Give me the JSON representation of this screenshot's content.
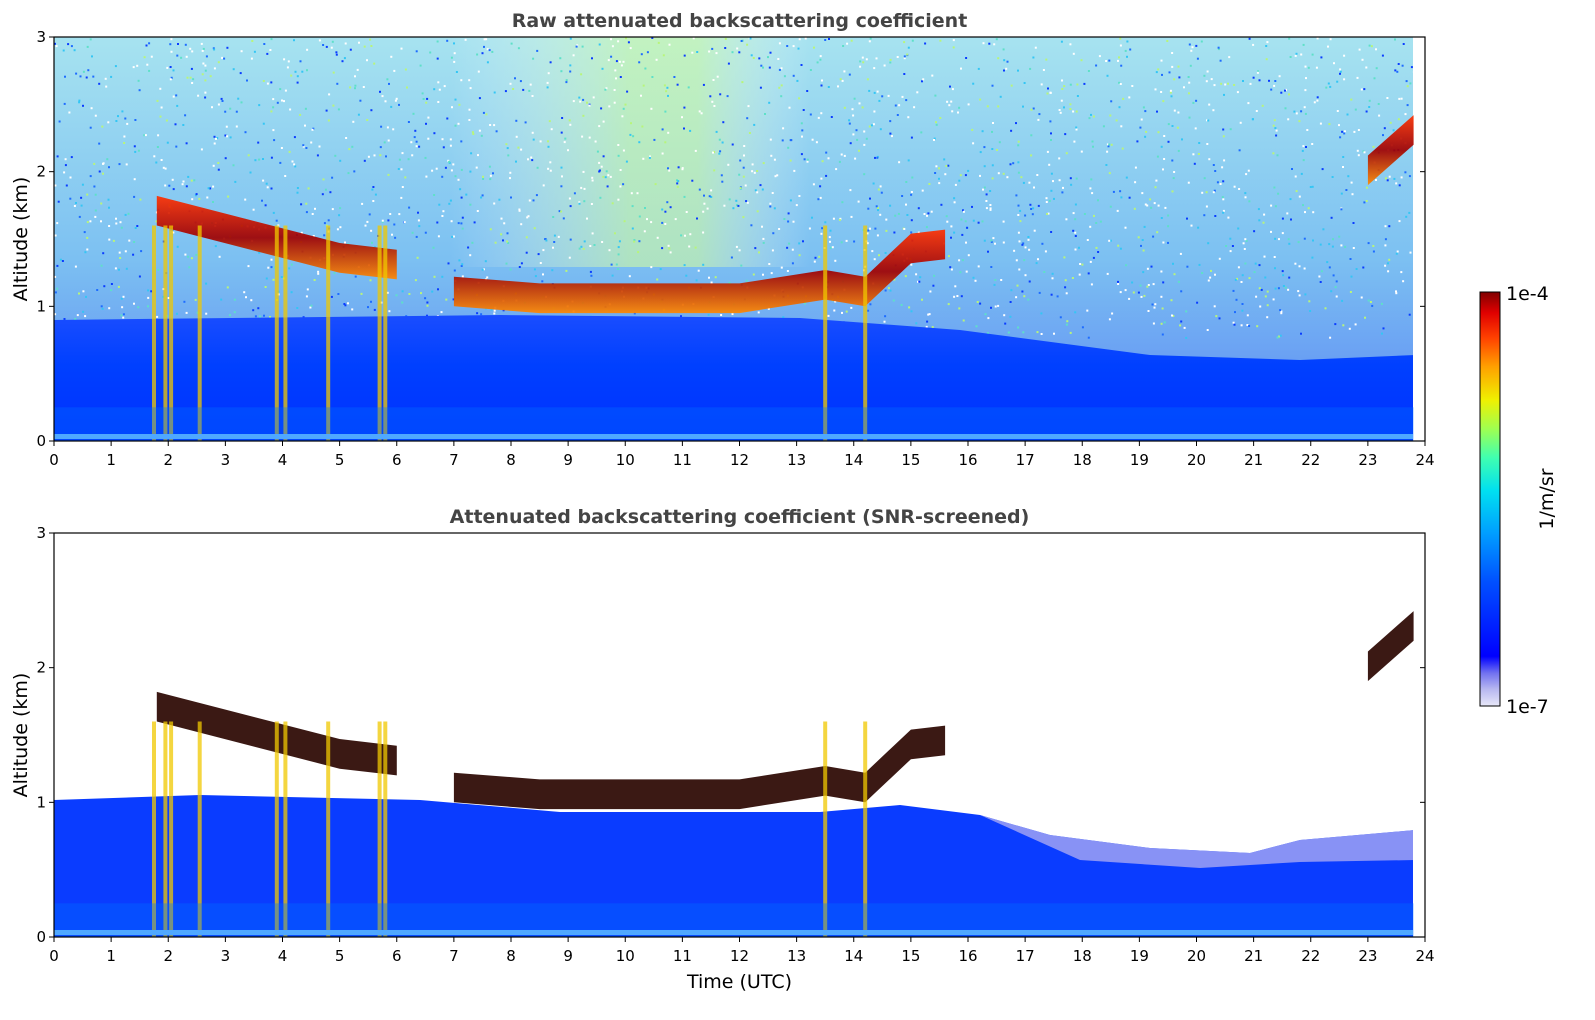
{
  "chart_data": [
    {
      "type": "heatmap",
      "title": "Raw attenuated backscattering coefficient",
      "xlabel": "",
      "ylabel": "Altitude (km)",
      "xlim": [
        0,
        24
      ],
      "ylim": [
        0,
        3
      ],
      "xticks": [
        "0",
        "1",
        "2",
        "3",
        "4",
        "5",
        "6",
        "7",
        "8",
        "9",
        "10",
        "11",
        "12",
        "13",
        "14",
        "15",
        "16",
        "17",
        "18",
        "19",
        "20",
        "21",
        "22",
        "23",
        "24"
      ],
      "yticks": [
        "0",
        "1",
        "2",
        "3"
      ],
      "colorscale": "jet",
      "color_range": [
        "1e-7",
        "1e-4"
      ],
      "features": {
        "cloud_layer_km": [
          {
            "t": 1.8,
            "alt": 1.7
          },
          {
            "t": 5.0,
            "alt": 1.35
          },
          {
            "t": 6.0,
            "alt": 1.3
          },
          {
            "t": 7.0,
            "alt": 1.1
          },
          {
            "t": 8.5,
            "alt": 1.05
          },
          {
            "t": 10.0,
            "alt": 1.05
          },
          {
            "t": 12.0,
            "alt": 1.05
          },
          {
            "t": 13.5,
            "alt": 1.15
          },
          {
            "t": 14.2,
            "alt": 1.1
          },
          {
            "t": 15.0,
            "alt": 1.42
          },
          {
            "t": 15.6,
            "alt": 1.45
          },
          {
            "t": 23.0,
            "alt": 2.0
          },
          {
            "t": 23.8,
            "alt": 2.3
          }
        ],
        "boundary_layer_top_km": [
          {
            "t": 0,
            "alt": 0.9
          },
          {
            "t": 8,
            "alt": 0.95
          },
          {
            "t": 14,
            "alt": 0.95
          },
          {
            "t": 17,
            "alt": 0.7
          },
          {
            "t": 21,
            "alt": 0.55
          },
          {
            "t": 23.8,
            "alt": 0.6
          }
        ]
      }
    },
    {
      "type": "heatmap",
      "title": "Attenuated backscattering coefficient (SNR-screened)",
      "xlabel": "Time (UTC)",
      "ylabel": "Altitude (km)",
      "xlim": [
        0,
        24
      ],
      "ylim": [
        0,
        3
      ],
      "xticks": [
        "0",
        "1",
        "2",
        "3",
        "4",
        "5",
        "6",
        "7",
        "8",
        "9",
        "10",
        "11",
        "12",
        "13",
        "14",
        "15",
        "16",
        "17",
        "18",
        "19",
        "20",
        "21",
        "22",
        "23",
        "24"
      ],
      "yticks": [
        "0",
        "1",
        "2",
        "3"
      ],
      "colorscale": "jet",
      "color_range": [
        "1e-7",
        "1e-4"
      ]
    }
  ],
  "colorbar": {
    "label": "1/m/sr",
    "min_label": "1e-7",
    "max_label": "1e-4",
    "colors": [
      "#e8e8f8",
      "#b8b8f0",
      "#7070f0",
      "#0000ff",
      "#0050ff",
      "#00a0ff",
      "#00e0f0",
      "#40ffb0",
      "#a0ff50",
      "#f0f000",
      "#ffa000",
      "#ff4000",
      "#e00000",
      "#800000"
    ]
  }
}
